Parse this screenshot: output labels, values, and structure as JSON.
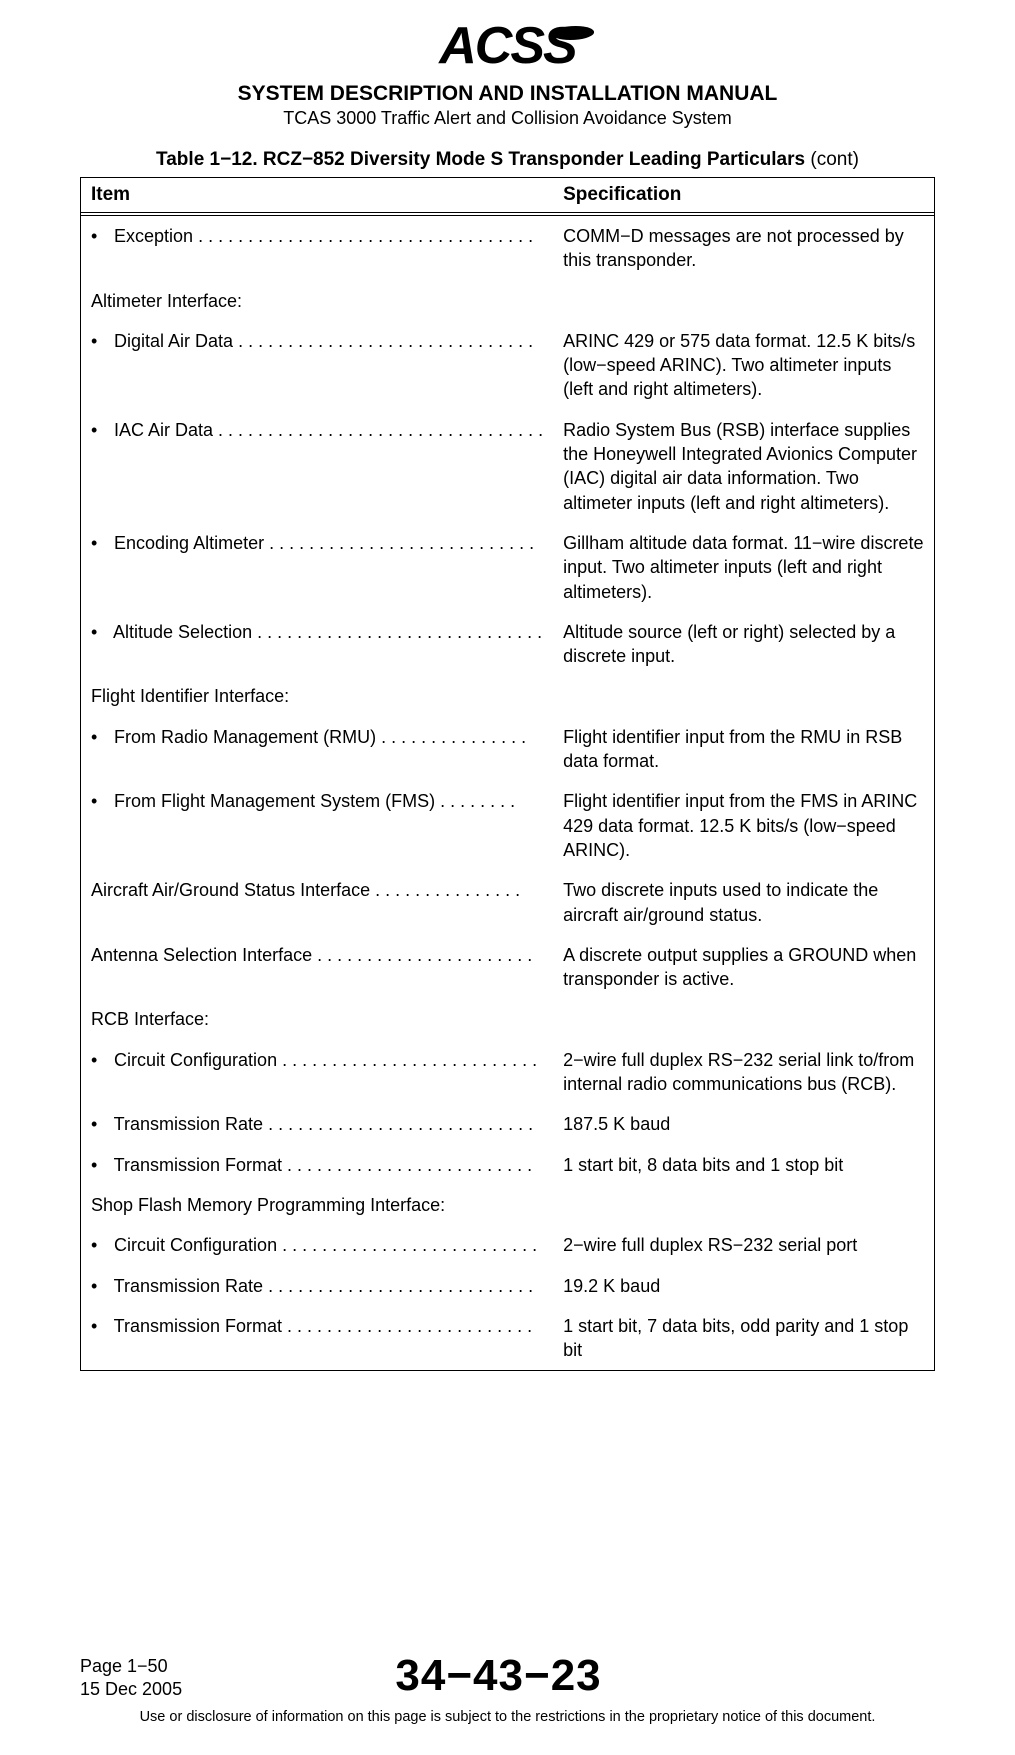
{
  "logo_text": "ACSS",
  "doc_title": "SYSTEM DESCRIPTION AND INSTALLATION MANUAL",
  "doc_subtitle": "TCAS 3000 Traffic Alert and Collision Avoidance System",
  "table_title_prefix": "Table 1−12.  RCZ−852 Diversity Mode S Transponder Leading Particulars",
  "table_title_cont": " (cont)",
  "th_item": "Item",
  "th_spec": "Specification",
  "rows": [
    {
      "type": "bullet",
      "label": "Exception",
      "dots": ". . . . . . . . . . . . . . . . . . . . . . . . . . . . . . . . . .",
      "spec": "COMM−D messages are not processed by this transponder."
    },
    {
      "type": "section",
      "label": "Altimeter Interface:",
      "spec": ""
    },
    {
      "type": "bullet",
      "label": "Digital Air Data",
      "dots": ". . . . . . . . . . . . . . . . . . . . . . . . . . . . . .",
      "spec": "ARINC 429 or 575 data format.  12.5 K bits/s (low−speed ARINC).  Two altimeter inputs (left and right altimeters)."
    },
    {
      "type": "bullet",
      "label": "IAC Air Data",
      "dots": ". . . . . . . . . . . . . . . . . . . . . . . . . . . . . . . . .",
      "spec": "Radio System Bus (RSB) interface supplies the Honeywell Integrated Avionics Computer (IAC) digital air data information.  Two altimeter inputs (left and right altimeters)."
    },
    {
      "type": "bullet",
      "label": "Encoding Altimeter",
      "dots": " . . . . . . . . . . . . . . . . . . . . . . . . . . .",
      "spec": "Gillham altitude data format.  11−wire discrete input.  Two altimeter inputs (left and right altimeters)."
    },
    {
      "type": "bullet",
      "label": "Altitude Selection",
      "dots": ". . . . . . . . . . . . . . . . . . . . . . . . . . . . .",
      "spec": "Altitude source (left or right) selected by a discrete input."
    },
    {
      "type": "section",
      "label": "Flight Identifier Interface:",
      "spec": ""
    },
    {
      "type": "bullet",
      "label": "From Radio Management (RMU)",
      "dots": " . . . . . . . . . . . . . . .",
      "spec": "Flight identifier input from the RMU in RSB data format."
    },
    {
      "type": "bullet",
      "label": "From Flight Management System (FMS)",
      "dots": " . . . . . . . .",
      "spec": "Flight identifier input from the FMS in ARINC 429 data format.  12.5 K bits/s (low−speed ARINC)."
    },
    {
      "type": "plain",
      "label": "Aircraft Air/Ground Status Interface",
      "dots": ". . . . . . . . . . . . . . .",
      "spec": "Two discrete inputs used to indicate the aircraft air/ground status."
    },
    {
      "type": "plain",
      "label": "Antenna Selection Interface",
      "dots": ". . . . . . . . . . . . . . . . . . . . . .",
      "spec": "A discrete output supplies a GROUND when transponder is active."
    },
    {
      "type": "section",
      "label": "RCB Interface:",
      "spec": ""
    },
    {
      "type": "bullet",
      "label": "Circuit Configuration",
      "dots": " . . . . . . . . . . . . . . . . . . . . . . . . . .",
      "spec": "2−wire full duplex RS−232 serial link to/from internal radio communications bus (RCB)."
    },
    {
      "type": "bullet",
      "label": "Transmission Rate",
      "dots": " . . . . . . . . . . . . . . . . . . . . . . . . . . .",
      "spec": "187.5 K baud"
    },
    {
      "type": "bullet",
      "label": "Transmission Format",
      "dots": " . . . . . . . . . . . . . . . . . . . . . . . . .",
      "spec": "1 start bit, 8 data bits and 1 stop bit"
    },
    {
      "type": "section",
      "label": "Shop Flash Memory Programming Interface:",
      "spec": ""
    },
    {
      "type": "bullet",
      "label": "Circuit Configuration",
      "dots": " . . . . . . . . . . . . . . . . . . . . . . . . . .",
      "spec": "2−wire full duplex RS−232 serial port"
    },
    {
      "type": "bullet",
      "label": "Transmission Rate",
      "dots": " . . . . . . . . . . . . . . . . . . . . . . . . . . .",
      "spec": "19.2 K baud"
    },
    {
      "type": "bullet",
      "label": "Transmission Format",
      "dots": " . . . . . . . . . . . . . . . . . . . . . . . . .",
      "spec": "1 start bit, 7 data bits, odd parity and 1 stop bit"
    }
  ],
  "page_label": "Page 1−50",
  "page_date": "15 Dec 2005",
  "ata_code": "34−43−23",
  "disclaimer": "Use or disclosure of information on this page is subject to the restrictions in the proprietary notice of this document."
}
